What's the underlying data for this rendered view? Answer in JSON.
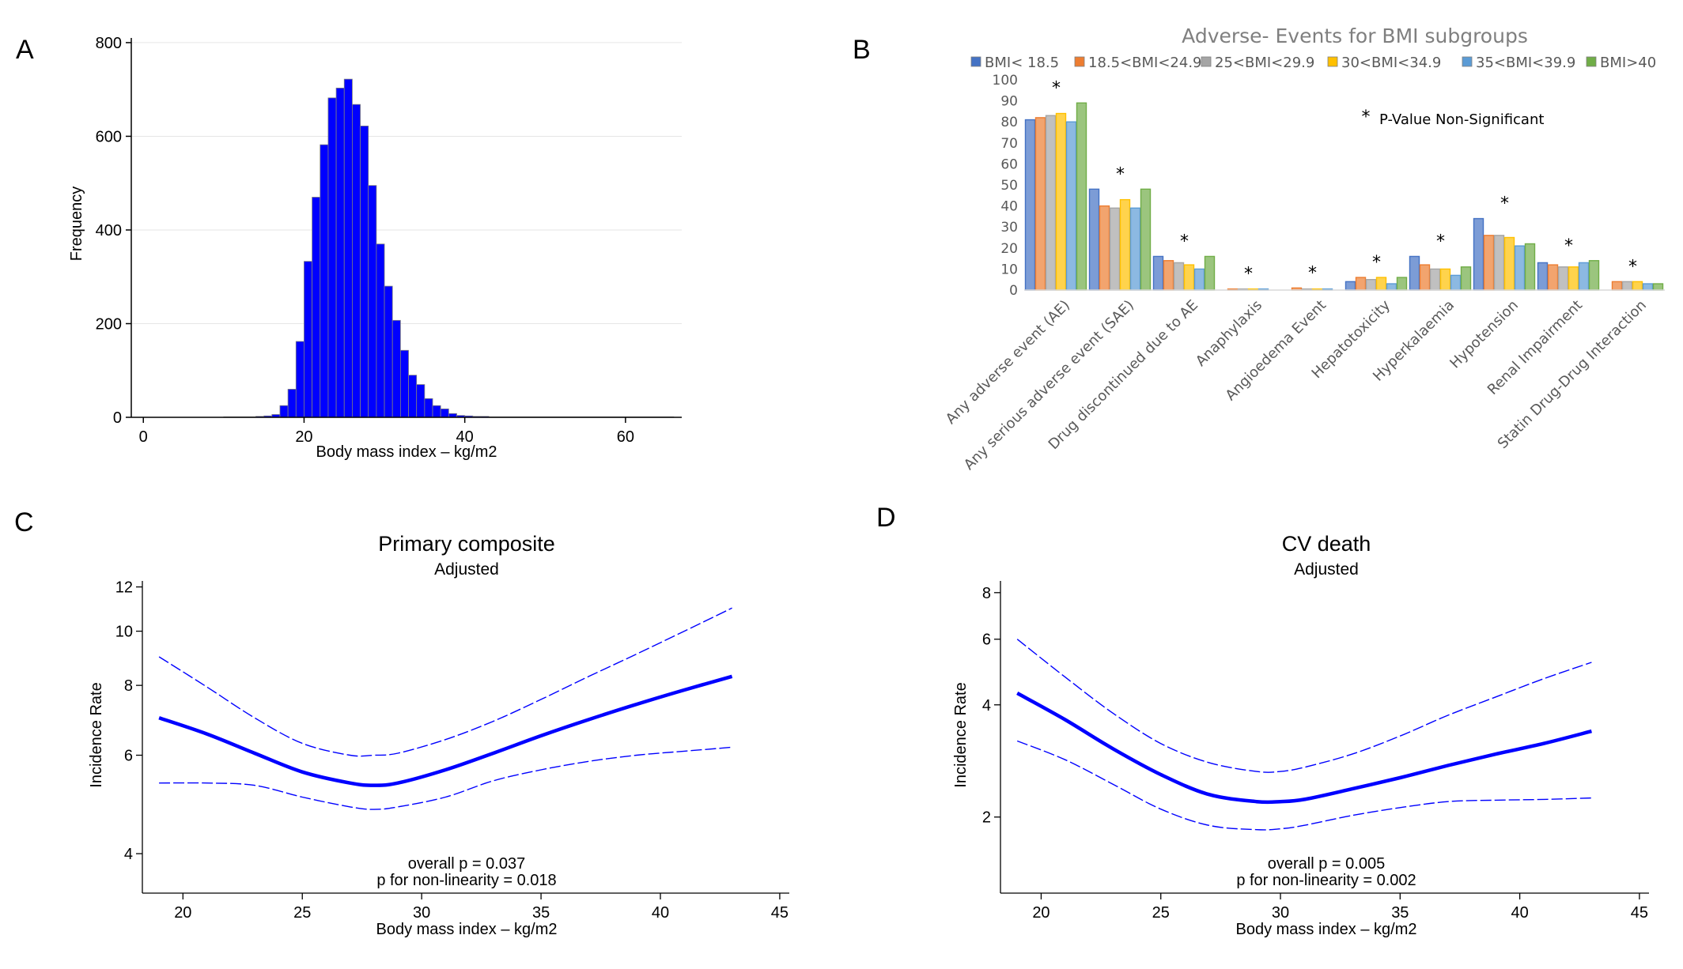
{
  "panels": {
    "a": "A",
    "b": "B",
    "c": "C",
    "d": "D"
  },
  "chart_data": [
    {
      "id": "A",
      "type": "bar",
      "title": "",
      "xlabel": "Body mass index – kg/m2",
      "ylabel": "Frequency",
      "xlim": [
        -1.5,
        67
      ],
      "ylim": [
        0,
        810
      ],
      "xticks": [
        0,
        20,
        40,
        60
      ],
      "yticks": [
        0,
        200,
        400,
        600,
        800
      ],
      "bin_width": 1,
      "bins": [
        {
          "x": 10,
          "value": 1
        },
        {
          "x": 11,
          "value": 1
        },
        {
          "x": 12,
          "value": 1
        },
        {
          "x": 13,
          "value": 1
        },
        {
          "x": 14,
          "value": 2
        },
        {
          "x": 15,
          "value": 3
        },
        {
          "x": 16,
          "value": 6
        },
        {
          "x": 17,
          "value": 25
        },
        {
          "x": 18,
          "value": 60
        },
        {
          "x": 19,
          "value": 162
        },
        {
          "x": 20,
          "value": 333
        },
        {
          "x": 21,
          "value": 470
        },
        {
          "x": 22,
          "value": 582
        },
        {
          "x": 23,
          "value": 682
        },
        {
          "x": 24,
          "value": 703
        },
        {
          "x": 25,
          "value": 722
        },
        {
          "x": 26,
          "value": 668
        },
        {
          "x": 27,
          "value": 622
        },
        {
          "x": 28,
          "value": 495
        },
        {
          "x": 29,
          "value": 370
        },
        {
          "x": 30,
          "value": 280
        },
        {
          "x": 31,
          "value": 207
        },
        {
          "x": 32,
          "value": 143
        },
        {
          "x": 33,
          "value": 90
        },
        {
          "x": 34,
          "value": 70
        },
        {
          "x": 35,
          "value": 40
        },
        {
          "x": 36,
          "value": 25
        },
        {
          "x": 37,
          "value": 18
        },
        {
          "x": 38,
          "value": 8
        },
        {
          "x": 39,
          "value": 4
        },
        {
          "x": 40,
          "value": 3
        },
        {
          "x": 41,
          "value": 2
        },
        {
          "x": 42,
          "value": 2
        },
        {
          "x": 43,
          "value": 1
        },
        {
          "x": 44,
          "value": 1
        },
        {
          "x": 45,
          "value": 1
        },
        {
          "x": 46,
          "value": 1
        },
        {
          "x": 47,
          "value": 1
        },
        {
          "x": 48,
          "value": 1
        },
        {
          "x": 49,
          "value": 1
        },
        {
          "x": 50,
          "value": 1
        },
        {
          "x": 51,
          "value": 1
        },
        {
          "x": 52,
          "value": 1
        },
        {
          "x": 53,
          "value": 1
        },
        {
          "x": 54,
          "value": 1
        },
        {
          "x": 55,
          "value": 1
        },
        {
          "x": 56,
          "value": 1
        },
        {
          "x": 57,
          "value": 1
        },
        {
          "x": 58,
          "value": 1
        },
        {
          "x": 59,
          "value": 1
        },
        {
          "x": 60,
          "value": 1
        },
        {
          "x": 61,
          "value": 1
        },
        {
          "x": 62,
          "value": 1
        },
        {
          "x": 63,
          "value": 1
        },
        {
          "x": 64,
          "value": 1
        },
        {
          "x": 65,
          "value": 1
        }
      ],
      "colors": {
        "bar": "#0000ff",
        "edge": "#7f7f7f",
        "grid": "#e6e6e6"
      }
    },
    {
      "id": "B",
      "type": "bar",
      "title": "Adverse- Events for BMI subgroups",
      "ylim": [
        0,
        100
      ],
      "yticks": [
        0,
        10,
        20,
        30,
        40,
        50,
        60,
        70,
        80,
        90,
        100
      ],
      "legend_position": "top",
      "categories": [
        "Any adverse event (AE)",
        "Any serious adverse event (SAE)",
        "Drug discontinued due to AE",
        "Anaphylaxis",
        "Angioedema Event",
        "Hepatotoxicity",
        "Hyperkalaemia",
        "Hypotension",
        "Renal Impairment",
        "Statin Drug-Drug Interaction"
      ],
      "series": [
        {
          "name": "BMI< 18.5",
          "color": "#4472c4",
          "values": [
            81,
            48,
            16,
            0,
            0,
            4,
            16,
            34,
            13,
            0
          ]
        },
        {
          "name": "18.5<BMI<24.9",
          "color": "#ed7d31",
          "values": [
            82,
            40,
            14,
            0.5,
            1,
            6,
            12,
            26,
            12,
            4
          ]
        },
        {
          "name": "25<BMI<29.9",
          "color": "#a5a5a5",
          "values": [
            83,
            39,
            13,
            0.5,
            0.5,
            5,
            10,
            26,
            11,
            4
          ]
        },
        {
          "name": "30<BMI<34.9",
          "color": "#ffc000",
          "values": [
            84,
            43,
            12,
            0.5,
            0.5,
            6,
            10,
            25,
            11,
            4
          ]
        },
        {
          "name": "35<BMI<39.9",
          "color": "#5b9bd5",
          "values": [
            80,
            39,
            10,
            0.5,
            0.5,
            3,
            7,
            21,
            13,
            3
          ]
        },
        {
          "name": "BMI>40",
          "color": "#70ad47",
          "values": [
            89,
            48,
            16,
            0,
            0,
            6,
            11,
            22,
            14,
            3
          ]
        }
      ],
      "star_marker": "*",
      "annotation": "P-Value Non-Significant",
      "colors": {
        "axis": "#d9d9d9"
      }
    },
    {
      "id": "C",
      "type": "line",
      "title": "Primary composite",
      "subtitle": "Adjusted",
      "xlabel": "Body mass index – kg/m2",
      "ylabel": "Incidence Rate",
      "yscale": "log",
      "xlim": [
        18.3,
        45.4
      ],
      "ylim": [
        3.4,
        12.3
      ],
      "xticks": [
        20,
        25,
        30,
        35,
        40,
        45
      ],
      "yticks": [
        4,
        6,
        8,
        10,
        12
      ],
      "note_1": "overall p = 0.037",
      "note_2": "p for non-linearity = 0.018",
      "series": [
        {
          "name": "estimate",
          "style": "solid",
          "x": [
            19,
            21,
            23,
            25,
            27,
            28,
            29,
            31,
            33,
            35,
            37,
            39,
            41,
            43
          ],
          "y": [
            7.0,
            6.55,
            6.05,
            5.6,
            5.35,
            5.3,
            5.35,
            5.65,
            6.05,
            6.5,
            6.95,
            7.4,
            7.85,
            8.3
          ]
        },
        {
          "name": "upper 95% CI",
          "style": "dashed",
          "x": [
            19,
            21,
            23,
            25,
            27,
            28,
            29,
            31,
            33,
            35,
            37,
            39,
            41,
            43
          ],
          "y": [
            9.0,
            7.95,
            7.0,
            6.3,
            6.0,
            6.0,
            6.05,
            6.4,
            6.9,
            7.55,
            8.3,
            9.1,
            10.0,
            11.0
          ]
        },
        {
          "name": "lower 95% CI",
          "style": "dashed",
          "x": [
            19,
            21,
            23,
            25,
            27,
            28,
            29,
            31,
            33,
            35,
            37,
            39,
            41,
            43
          ],
          "y": [
            5.35,
            5.35,
            5.3,
            5.05,
            4.85,
            4.8,
            4.85,
            5.05,
            5.4,
            5.65,
            5.85,
            6.0,
            6.1,
            6.2
          ]
        }
      ],
      "colors": {
        "line": "#0000ff"
      }
    },
    {
      "id": "D",
      "type": "line",
      "title": "CV death",
      "subtitle": "Adjusted",
      "xlabel": "Body mass index – kg/m2",
      "ylabel": "Incidence Rate",
      "yscale": "log",
      "xlim": [
        18.3,
        45.4
      ],
      "ylim": [
        1.25,
        8.6
      ],
      "xticks": [
        20,
        25,
        30,
        35,
        40,
        45
      ],
      "yticks": [
        2,
        4,
        6,
        8
      ],
      "note_1": "overall p = 0.005",
      "note_2": "p for non-linearity = 0.002",
      "series": [
        {
          "name": "estimate",
          "style": "solid",
          "x": [
            19,
            21,
            23,
            25,
            27,
            29,
            30,
            31,
            33,
            35,
            37,
            39,
            41,
            43
          ],
          "y": [
            4.3,
            3.65,
            3.05,
            2.6,
            2.3,
            2.2,
            2.2,
            2.23,
            2.38,
            2.55,
            2.75,
            2.95,
            3.15,
            3.4
          ]
        },
        {
          "name": "upper 95% CI",
          "style": "dashed",
          "x": [
            19,
            21,
            23,
            25,
            27,
            29,
            30,
            31,
            33,
            35,
            37,
            39,
            41,
            43
          ],
          "y": [
            6.0,
            4.75,
            3.8,
            3.15,
            2.8,
            2.65,
            2.65,
            2.72,
            2.95,
            3.3,
            3.75,
            4.2,
            4.7,
            5.2
          ]
        },
        {
          "name": "lower 95% CI",
          "style": "dashed",
          "x": [
            19,
            21,
            23,
            25,
            27,
            29,
            30,
            31,
            33,
            35,
            37,
            39,
            41,
            43
          ],
          "y": [
            3.2,
            2.85,
            2.45,
            2.1,
            1.9,
            1.85,
            1.86,
            1.9,
            2.02,
            2.12,
            2.2,
            2.22,
            2.23,
            2.25
          ]
        }
      ],
      "colors": {
        "line": "#0000ff"
      }
    }
  ]
}
